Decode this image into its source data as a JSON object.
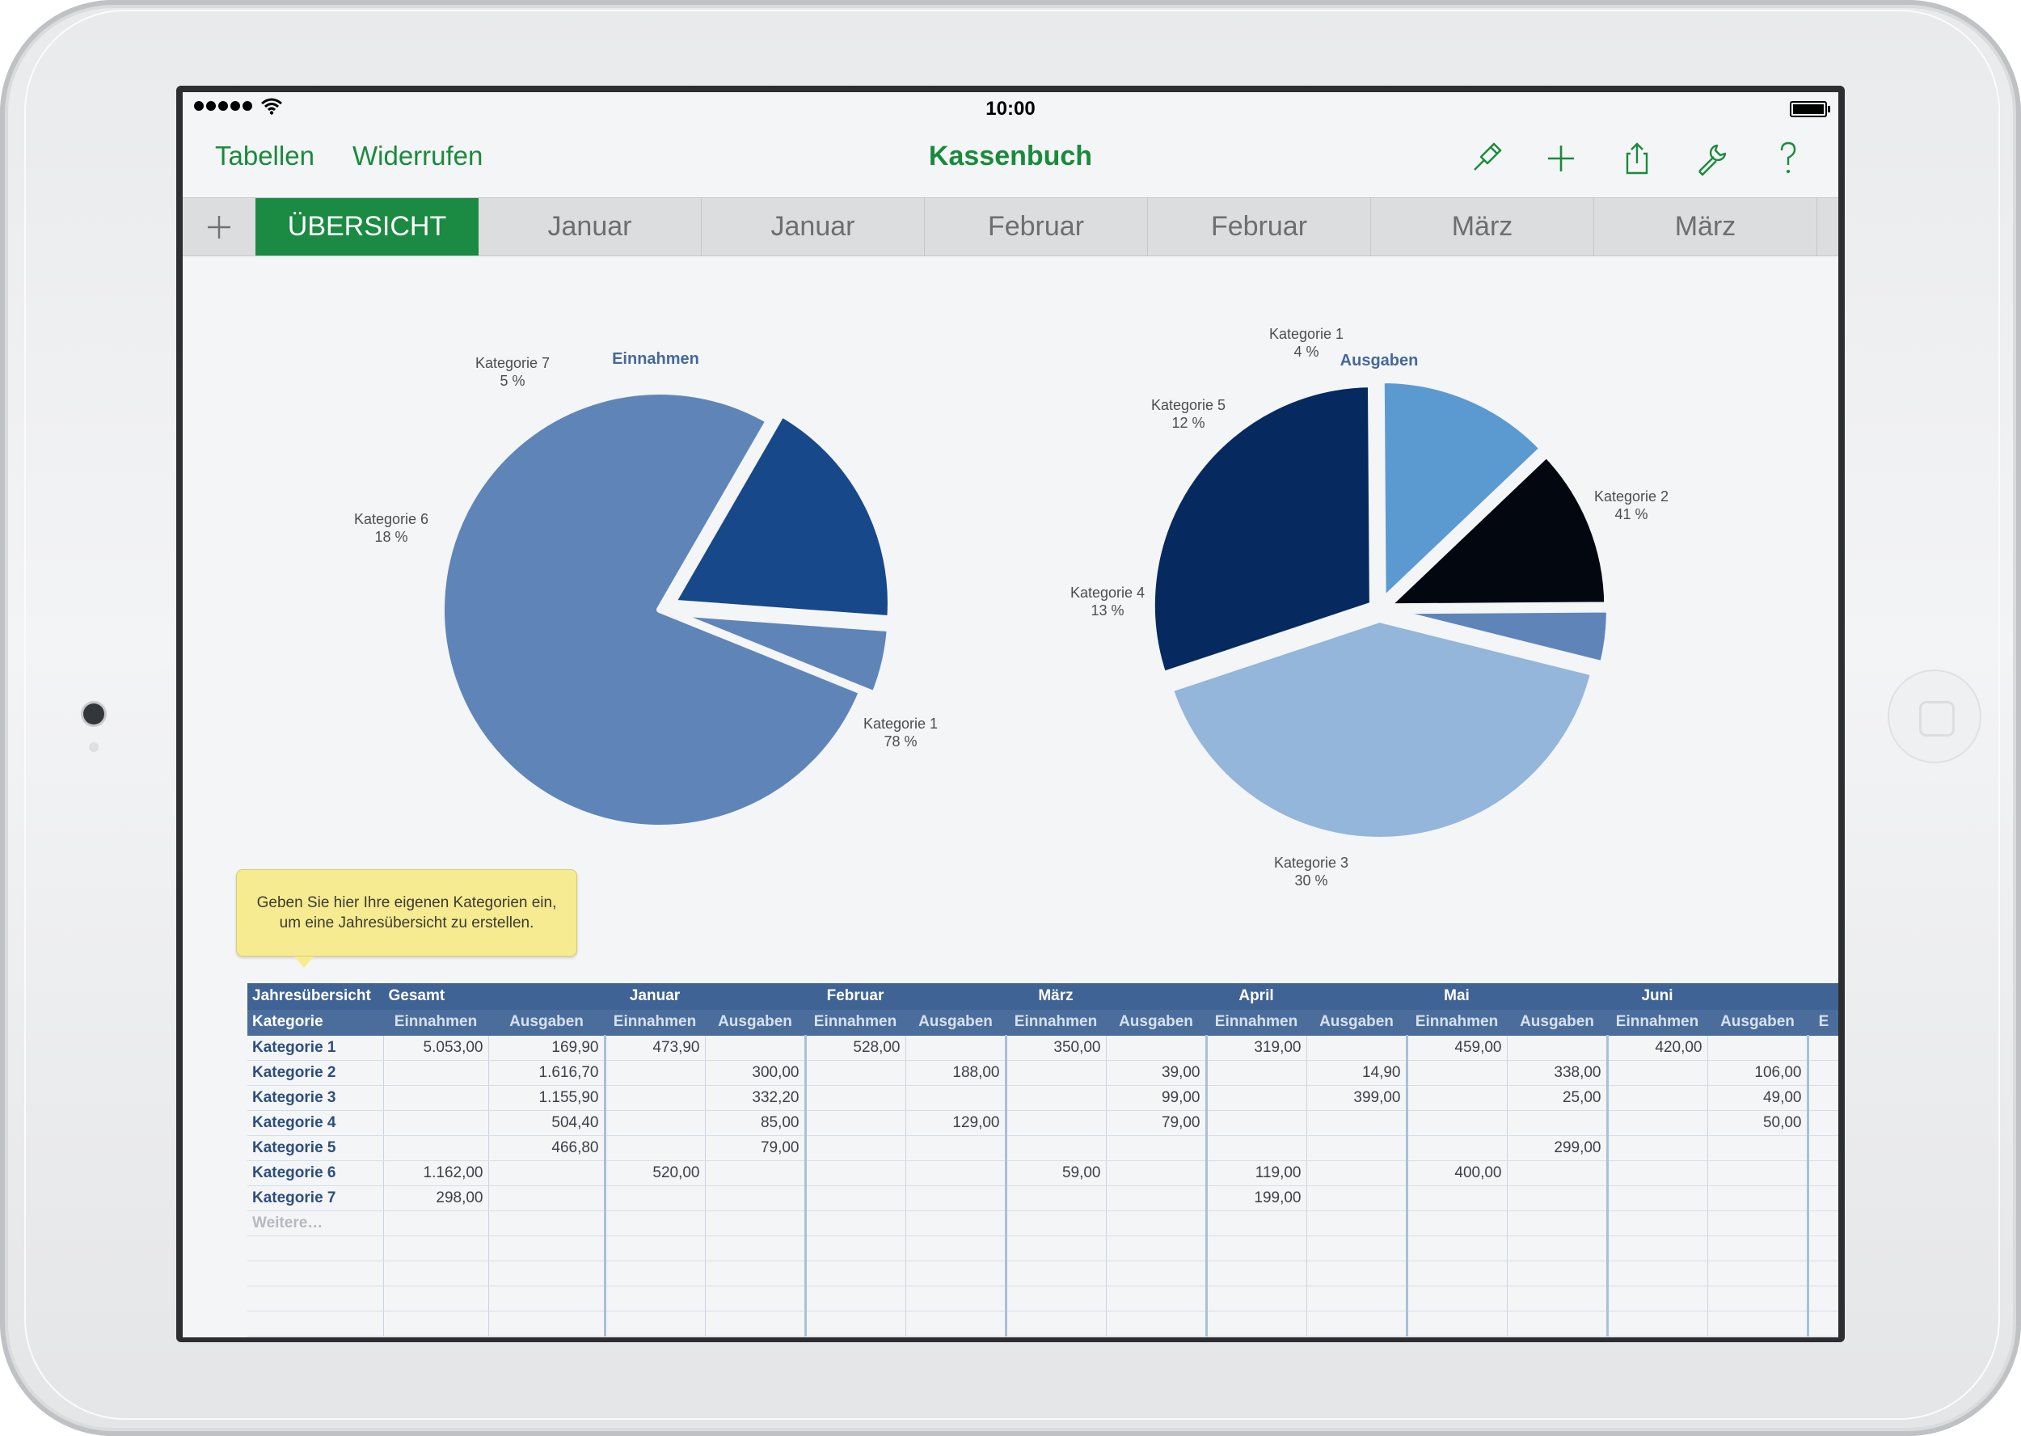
{
  "status_bar": {
    "time": "10:00"
  },
  "navbar": {
    "back_label": "Tabellen",
    "undo_label": "Widerrufen",
    "title": "Kassenbuch",
    "icons": [
      "format-brush-icon",
      "plus-icon",
      "share-icon",
      "wrench-icon",
      "help-icon"
    ]
  },
  "tabs": {
    "add_icon": "plus-icon",
    "items": [
      "ÜBERSICHT",
      "Januar",
      "Januar",
      "Februar",
      "Februar",
      "März",
      "März"
    ],
    "active_index": 0
  },
  "colors": {
    "accent": "#1b8a42",
    "link": "#1a8a3c",
    "table_header": "#3f6394",
    "category_text": "#2d4e7e"
  },
  "chart_data": [
    {
      "type": "pie",
      "title": "Einnahmen",
      "slices": [
        {
          "label": "Kategorie 1",
          "percent_label": "78 %",
          "value": 78,
          "color": "#5f85b8"
        },
        {
          "label": "Kategorie 6",
          "percent_label": "18 %",
          "value": 18,
          "color": "#17488a"
        },
        {
          "label": "Kategorie 7",
          "percent_label": "5 %",
          "value": 5,
          "color": "#5f85b8"
        }
      ]
    },
    {
      "type": "pie",
      "title": "Ausgaben",
      "slices": [
        {
          "label": "Kategorie 2",
          "percent_label": "41 %",
          "value": 41,
          "color": "#93b6da"
        },
        {
          "label": "Kategorie 3",
          "percent_label": "30 %",
          "value": 30,
          "color": "#062a5f"
        },
        {
          "label": "Kategorie 4",
          "percent_label": "13 %",
          "value": 13,
          "color": "#5b9ad1"
        },
        {
          "label": "Kategorie 5",
          "percent_label": "12 %",
          "value": 12,
          "color": "#030810"
        },
        {
          "label": "Kategorie 1",
          "percent_label": "4 %",
          "value": 4,
          "color": "#5f85b8"
        }
      ]
    }
  ],
  "callout": {
    "line1": "Geben Sie hier Ihre eigenen Kategorien ein,",
    "line2": "um eine Jahresübersicht zu erstellen."
  },
  "table": {
    "header_row1": [
      "Jahresübersicht",
      "Gesamt",
      "",
      "Januar",
      "",
      "Februar",
      "",
      "März",
      "",
      "April",
      "",
      "Mai",
      "",
      "Juni",
      "",
      ""
    ],
    "header_row2": [
      "Kategorie",
      "Einnahmen",
      "Ausgaben",
      "Einnahmen",
      "Ausgaben",
      "Einnahmen",
      "Ausgaben",
      "Einnahmen",
      "Ausgaben",
      "Einnahmen",
      "Ausgaben",
      "Einnahmen",
      "Ausgaben",
      "Einnahmen",
      "Ausgaben",
      "E"
    ],
    "rows": [
      [
        "Kategorie 1",
        "5.053,00",
        "169,90",
        "473,90",
        "",
        "528,00",
        "",
        "350,00",
        "",
        "319,00",
        "",
        "459,00",
        "",
        "420,00",
        "",
        ""
      ],
      [
        "Kategorie 2",
        "",
        "1.616,70",
        "",
        "300,00",
        "",
        "188,00",
        "",
        "39,00",
        "",
        "14,90",
        "",
        "338,00",
        "",
        "106,00",
        ""
      ],
      [
        "Kategorie 3",
        "",
        "1.155,90",
        "",
        "332,20",
        "",
        "",
        "",
        "99,00",
        "",
        "399,00",
        "",
        "25,00",
        "",
        "49,00",
        ""
      ],
      [
        "Kategorie 4",
        "",
        "504,40",
        "",
        "85,00",
        "",
        "129,00",
        "",
        "79,00",
        "",
        "",
        "",
        "",
        "",
        "50,00",
        ""
      ],
      [
        "Kategorie 5",
        "",
        "466,80",
        "",
        "79,00",
        "",
        "",
        "",
        "",
        "",
        "",
        "",
        "299,00",
        "",
        "",
        ""
      ],
      [
        "Kategorie 6",
        "1.162,00",
        "",
        "520,00",
        "",
        "",
        "",
        "59,00",
        "",
        "119,00",
        "",
        "400,00",
        "",
        "",
        "",
        ""
      ],
      [
        "Kategorie 7",
        "298,00",
        "",
        "",
        "",
        "",
        "",
        "",
        "",
        "199,00",
        "",
        "",
        "",
        "",
        "",
        ""
      ],
      [
        "Weitere…",
        "",
        "",
        "",
        "",
        "",
        "",
        "",
        "",
        "",
        "",
        "",
        "",
        "",
        "",
        ""
      ],
      [
        "",
        "",
        "",
        "",
        "",
        "",
        "",
        "",
        "",
        "",
        "",
        "",
        "",
        "",
        "",
        ""
      ],
      [
        "",
        "",
        "",
        "",
        "",
        "",
        "",
        "",
        "",
        "",
        "",
        "",
        "",
        "",
        "",
        ""
      ],
      [
        "",
        "",
        "",
        "",
        "",
        "",
        "",
        "",
        "",
        "",
        "",
        "",
        "",
        "",
        "",
        ""
      ],
      [
        "",
        "",
        "",
        "",
        "",
        "",
        "",
        "",
        "",
        "",
        "",
        "",
        "",
        "",
        "",
        ""
      ]
    ]
  }
}
